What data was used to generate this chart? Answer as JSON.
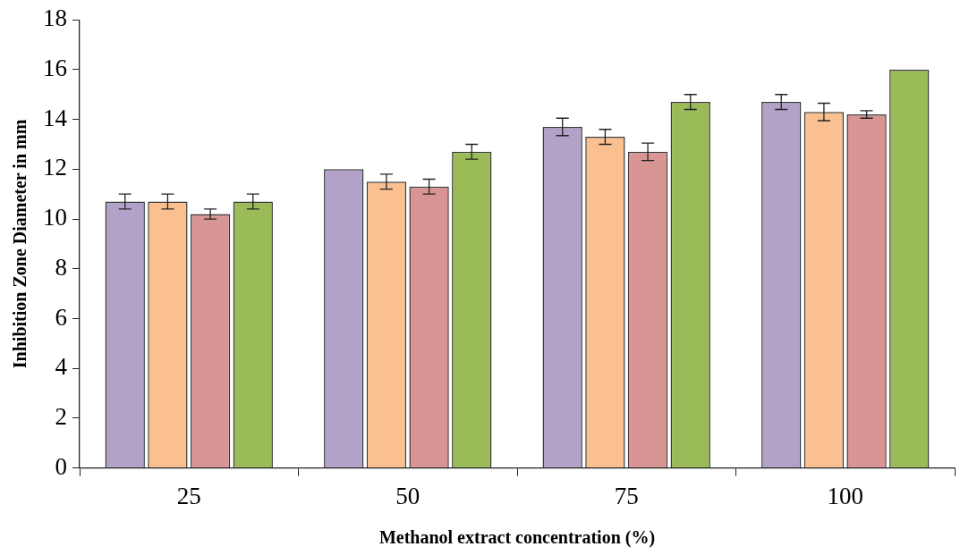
{
  "chart_data": {
    "type": "bar",
    "xlabel": "Methanol extract concentration (%)",
    "ylabel": "Inhibition Zone Diameter in mm",
    "categories": [
      "25",
      "50",
      "75",
      "100"
    ],
    "series": [
      {
        "color": "#b2a2c7",
        "values": [
          10.7,
          12.0,
          13.7,
          14.7
        ],
        "errors": [
          0.3,
          null,
          0.35,
          0.3
        ]
      },
      {
        "color": "#fac090",
        "values": [
          10.7,
          11.5,
          13.3,
          14.3
        ],
        "errors": [
          0.3,
          0.3,
          0.3,
          0.35
        ]
      },
      {
        "color": "#d99594",
        "values": [
          10.2,
          11.3,
          12.7,
          14.2
        ],
        "errors": [
          0.2,
          0.3,
          0.35,
          0.15
        ]
      },
      {
        "color": "#9bbb59",
        "values": [
          10.7,
          12.7,
          14.7,
          16.0
        ],
        "errors": [
          0.3,
          0.3,
          0.3,
          null
        ]
      }
    ],
    "ylim": [
      0,
      18
    ],
    "yticks": [
      0,
      2,
      4,
      6,
      8,
      10,
      12,
      14,
      16,
      18
    ],
    "grid": false,
    "legend": false
  }
}
